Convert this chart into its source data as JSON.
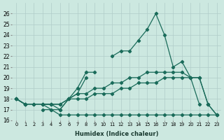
{
  "xlabel": "Humidex (Indice chaleur)",
  "bg_color": "#cce8e0",
  "line_color": "#1a6b5a",
  "grid_color": "#b0ccc8",
  "ylim": [
    16,
    27
  ],
  "yticks": [
    16,
    17,
    18,
    19,
    20,
    21,
    22,
    23,
    24,
    25,
    26
  ],
  "xticks": [
    0,
    1,
    2,
    3,
    4,
    5,
    6,
    7,
    8,
    9,
    10,
    11,
    12,
    13,
    14,
    15,
    16,
    17,
    18,
    19,
    20,
    21,
    22,
    23
  ],
  "x": [
    0,
    1,
    2,
    3,
    4,
    5,
    6,
    7,
    8,
    9,
    10,
    11,
    12,
    13,
    14,
    15,
    16,
    17,
    18,
    19,
    20,
    21,
    22,
    23
  ],
  "line_main": [
    18,
    17.5,
    null,
    17.5,
    17,
    17,
    18,
    19,
    20.5,
    20.5,
    null,
    22,
    22.5,
    22.5,
    23.5,
    24.5,
    26,
    24,
    21,
    21.5,
    20,
    null,
    17.5,
    null
  ],
  "line_mid": [
    18,
    17.5,
    null,
    17.5,
    17.5,
    17,
    18,
    18.5,
    20,
    null,
    null,
    null,
    null,
    null,
    null,
    null,
    null,
    null,
    null,
    null,
    20,
    17.5,
    null,
    null
  ],
  "line_upper": [
    18,
    17.5,
    17.5,
    17.5,
    17.5,
    17.5,
    18,
    18.5,
    18.5,
    19,
    19,
    19.5,
    19.5,
    20,
    20,
    20.5,
    20.5,
    20.5,
    20.5,
    20.5,
    20,
    20,
    17.5,
    16.5
  ],
  "line_lower1": [
    18,
    17.5,
    17.5,
    17.5,
    17.5,
    17.5,
    18,
    18,
    18,
    18.5,
    18.5,
    18.5,
    19,
    19,
    19.5,
    19.5,
    19.5,
    20,
    20,
    20,
    20,
    20,
    17.5,
    16.5
  ],
  "line_flat": [
    18,
    17.5,
    null,
    17,
    17,
    16.5,
    16.5,
    16.5,
    16.5,
    16.5,
    16.5,
    16.5,
    16.5,
    16.5,
    16.5,
    16.5,
    16.5,
    16.5,
    16.5,
    16.5,
    16.5,
    16.5,
    16.5,
    16.5
  ]
}
